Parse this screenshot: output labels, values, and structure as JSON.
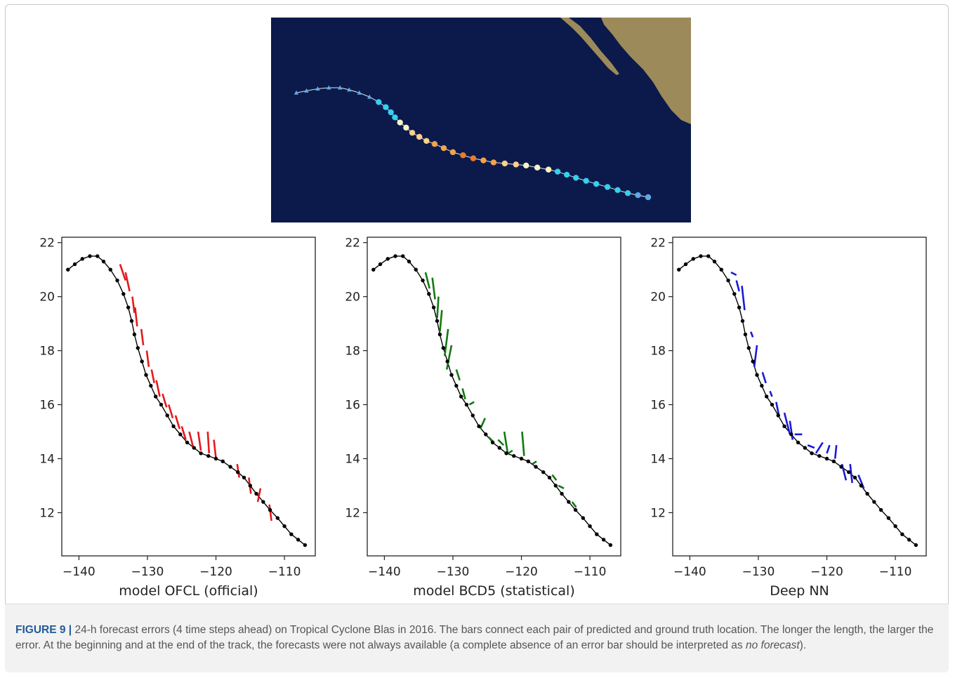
{
  "caption": {
    "label": "FIGURE 9 |",
    "text_part1": " 24-h forecast errors (4 time steps ahead) on Tropical Cyclone Blas in 2016. The bars connect each pair of predicted and ground truth location. The longer the length, the larger the error. At the beginning and at the end of the track, the forecasts were not always available (a complete absence of an error bar should be interpreted as ",
    "text_italic": "no forecast",
    "text_part2": ")."
  },
  "map_image": {
    "colors": {
      "ocean": "#0b1a4a",
      "land": "#9c8a5a",
      "track_line": "#e6e6e6",
      "depression": "#5fa8e8",
      "storm": "#35d0f0",
      "cat1": "#fbf3c4",
      "cat2": "#fbd08a",
      "cat3": "#f5a24a",
      "cat4": "#ee7a2a"
    }
  },
  "chart_data": [
    {
      "type": "scatter",
      "xlabel": "model OFCL (official)",
      "xlim": [
        -142.5,
        -105.5
      ],
      "ylim": [
        10.4,
        22.2
      ],
      "xticks": [
        -140,
        -130,
        -120,
        -110
      ],
      "yticks": [
        12,
        14,
        16,
        18,
        20,
        22
      ],
      "xtick_labels": [
        "−140",
        "−130",
        "−120",
        "−110"
      ],
      "ytick_labels": [
        "12",
        "14",
        "16",
        "18",
        "20",
        "22"
      ],
      "color": "#e31a1c",
      "track": {
        "x": [
          -141.6,
          -140.6,
          -139.5,
          -138.4,
          -137.3,
          -136.4,
          -135.4,
          -134.4,
          -133.5,
          -132.8,
          -132.3,
          -131.9,
          -131.4,
          -130.8,
          -130.2,
          -129.5,
          -128.8,
          -128.0,
          -127.1,
          -126.2,
          -125.2,
          -124.2,
          -123.2,
          -122.2,
          -121.1,
          -120.0,
          -119.0,
          -117.9,
          -116.8,
          -115.9,
          -115.0,
          -114.1,
          -113.1,
          -112.1,
          -111.0,
          -110.0,
          -109.0,
          -108.0,
          -107.0
        ],
        "y": [
          21.0,
          21.2,
          21.4,
          21.5,
          21.5,
          21.3,
          21.0,
          20.6,
          20.1,
          19.6,
          19.1,
          18.6,
          18.1,
          17.6,
          17.1,
          16.7,
          16.3,
          16.0,
          15.6,
          15.2,
          14.9,
          14.6,
          14.4,
          14.2,
          14.1,
          14.0,
          13.9,
          13.7,
          13.5,
          13.3,
          13.0,
          12.7,
          12.4,
          12.1,
          11.8,
          11.5,
          11.2,
          11.0,
          10.8
        ]
      },
      "error_bars": [
        {
          "x1": -134.0,
          "y1": 21.2,
          "x2": -133.2,
          "y2": 20.6
        },
        {
          "x1": -133.2,
          "y1": 20.9,
          "x2": -132.6,
          "y2": 20.2
        },
        {
          "x1": -132.2,
          "y1": 20.0,
          "x2": -131.9,
          "y2": 19.4
        },
        {
          "x1": -131.8,
          "y1": 19.6,
          "x2": -131.5,
          "y2": 18.9
        },
        {
          "x1": -130.9,
          "y1": 18.8,
          "x2": -130.6,
          "y2": 18.2
        },
        {
          "x1": -130.1,
          "y1": 18.0,
          "x2": -129.8,
          "y2": 17.4
        },
        {
          "x1": -129.4,
          "y1": 17.3,
          "x2": -129.0,
          "y2": 16.8
        },
        {
          "x1": -128.7,
          "y1": 16.9,
          "x2": -128.2,
          "y2": 16.3
        },
        {
          "x1": -127.8,
          "y1": 16.4,
          "x2": -127.2,
          "y2": 15.9
        },
        {
          "x1": -126.9,
          "y1": 16.0,
          "x2": -126.3,
          "y2": 15.5
        },
        {
          "x1": -125.9,
          "y1": 15.6,
          "x2": -125.3,
          "y2": 15.1
        },
        {
          "x1": -125.0,
          "y1": 15.2,
          "x2": -124.4,
          "y2": 14.7
        },
        {
          "x1": -123.9,
          "y1": 15.0,
          "x2": -123.3,
          "y2": 14.4
        },
        {
          "x1": -122.6,
          "y1": 15.0,
          "x2": -122.2,
          "y2": 14.3
        },
        {
          "x1": -121.2,
          "y1": 15.0,
          "x2": -121.0,
          "y2": 14.2
        },
        {
          "x1": -120.3,
          "y1": 14.7,
          "x2": -120.0,
          "y2": 14.0
        },
        {
          "x1": -116.9,
          "y1": 13.8,
          "x2": -116.6,
          "y2": 13.3
        },
        {
          "x1": -115.2,
          "y1": 13.3,
          "x2": -114.9,
          "y2": 12.7
        },
        {
          "x1": -113.5,
          "y1": 12.9,
          "x2": -113.9,
          "y2": 12.4
        },
        {
          "x1": -112.2,
          "y1": 12.3,
          "x2": -111.9,
          "y2": 11.7
        }
      ]
    },
    {
      "type": "scatter",
      "xlabel": "model BCD5 (statistical)",
      "xlim": [
        -142.5,
        -105.5
      ],
      "ylim": [
        10.4,
        22.2
      ],
      "xticks": [
        -140,
        -130,
        -120,
        -110
      ],
      "yticks": [
        12,
        14,
        16,
        18,
        20,
        22
      ],
      "xtick_labels": [
        "−140",
        "−130",
        "−120",
        "−110"
      ],
      "ytick_labels": [
        "12",
        "14",
        "16",
        "18",
        "20",
        "22"
      ],
      "color": "#117a11",
      "track": {
        "x": [
          -141.6,
          -140.6,
          -139.5,
          -138.4,
          -137.3,
          -136.4,
          -135.4,
          -134.4,
          -133.5,
          -132.8,
          -132.3,
          -131.9,
          -131.4,
          -130.8,
          -130.2,
          -129.5,
          -128.8,
          -128.0,
          -127.1,
          -126.2,
          -125.2,
          -124.2,
          -123.2,
          -122.2,
          -121.1,
          -120.0,
          -119.0,
          -117.9,
          -116.8,
          -115.9,
          -115.0,
          -114.1,
          -113.1,
          -112.1,
          -111.0,
          -110.0,
          -109.0,
          -108.0,
          -107.0
        ],
        "y": [
          21.0,
          21.2,
          21.4,
          21.5,
          21.5,
          21.3,
          21.0,
          20.6,
          20.1,
          19.6,
          19.1,
          18.6,
          18.1,
          17.6,
          17.1,
          16.7,
          16.3,
          16.0,
          15.6,
          15.2,
          14.9,
          14.6,
          14.4,
          14.2,
          14.1,
          14.0,
          13.9,
          13.7,
          13.5,
          13.3,
          13.0,
          12.7,
          12.4,
          12.1,
          11.8,
          11.5,
          11.2,
          11.0,
          10.8
        ]
      },
      "error_bars": [
        {
          "x1": -134.0,
          "y1": 20.9,
          "x2": -133.4,
          "y2": 20.3
        },
        {
          "x1": -133.0,
          "y1": 20.7,
          "x2": -132.6,
          "y2": 19.9
        },
        {
          "x1": -132.1,
          "y1": 20.0,
          "x2": -132.3,
          "y2": 19.2
        },
        {
          "x1": -131.6,
          "y1": 19.5,
          "x2": -131.9,
          "y2": 18.7
        },
        {
          "x1": -130.7,
          "y1": 18.8,
          "x2": -131.2,
          "y2": 17.8
        },
        {
          "x1": -130.2,
          "y1": 18.2,
          "x2": -130.9,
          "y2": 17.3
        },
        {
          "x1": -129.5,
          "y1": 17.3,
          "x2": -129.0,
          "y2": 16.9
        },
        {
          "x1": -128.6,
          "y1": 16.6,
          "x2": -128.2,
          "y2": 16.2
        },
        {
          "x1": -127.6,
          "y1": 16.0,
          "x2": -126.9,
          "y2": 16.1
        },
        {
          "x1": -126.0,
          "y1": 15.1,
          "x2": -125.3,
          "y2": 15.5
        },
        {
          "x1": -124.8,
          "y1": 14.8,
          "x2": -124.0,
          "y2": 14.6
        },
        {
          "x1": -123.4,
          "y1": 14.7,
          "x2": -122.6,
          "y2": 14.5
        },
        {
          "x1": -122.5,
          "y1": 15.0,
          "x2": -122.0,
          "y2": 14.2
        },
        {
          "x1": -121.9,
          "y1": 14.2,
          "x2": -121.3,
          "y2": 14.3
        },
        {
          "x1": -119.9,
          "y1": 15.0,
          "x2": -119.6,
          "y2": 14.1
        },
        {
          "x1": -118.4,
          "y1": 13.8,
          "x2": -117.8,
          "y2": 13.9
        },
        {
          "x1": -115.5,
          "y1": 13.4,
          "x2": -114.9,
          "y2": 13.2
        },
        {
          "x1": -114.6,
          "y1": 13.0,
          "x2": -113.8,
          "y2": 12.9
        },
        {
          "x1": -112.6,
          "y1": 12.4,
          "x2": -112.0,
          "y2": 12.2
        }
      ]
    },
    {
      "type": "scatter",
      "xlabel": "Deep NN",
      "xlim": [
        -142.5,
        -105.5
      ],
      "ylim": [
        10.4,
        22.2
      ],
      "xticks": [
        -140,
        -130,
        -120,
        -110
      ],
      "yticks": [
        12,
        14,
        16,
        18,
        20,
        22
      ],
      "xtick_labels": [
        "−140",
        "−130",
        "−120",
        "−110"
      ],
      "ytick_labels": [
        "12",
        "14",
        "16",
        "18",
        "20",
        "22"
      ],
      "color": "#1a1ad6",
      "track": {
        "x": [
          -141.6,
          -140.6,
          -139.5,
          -138.4,
          -137.3,
          -136.4,
          -135.4,
          -134.4,
          -133.5,
          -132.8,
          -132.3,
          -131.9,
          -131.4,
          -130.8,
          -130.2,
          -129.5,
          -128.8,
          -128.0,
          -127.1,
          -126.2,
          -125.2,
          -124.2,
          -123.2,
          -122.2,
          -121.1,
          -120.0,
          -119.0,
          -117.9,
          -116.8,
          -115.9,
          -115.0,
          -114.1,
          -113.1,
          -112.1,
          -111.0,
          -110.0,
          -109.0,
          -108.0,
          -107.0
        ],
        "y": [
          21.0,
          21.2,
          21.4,
          21.5,
          21.5,
          21.3,
          21.0,
          20.6,
          20.1,
          19.6,
          19.1,
          18.6,
          18.1,
          17.6,
          17.1,
          16.7,
          16.3,
          16.0,
          15.6,
          15.2,
          14.9,
          14.6,
          14.4,
          14.2,
          14.1,
          14.0,
          13.9,
          13.7,
          13.5,
          13.3,
          13.0,
          12.7,
          12.4,
          12.1,
          11.8,
          11.5,
          11.2,
          11.0,
          10.8
        ]
      },
      "error_bars": [
        {
          "x1": -134.0,
          "y1": 20.9,
          "x2": -133.2,
          "y2": 20.8
        },
        {
          "x1": -133.2,
          "y1": 20.6,
          "x2": -132.8,
          "y2": 20.2
        },
        {
          "x1": -132.4,
          "y1": 20.4,
          "x2": -132.0,
          "y2": 19.5
        },
        {
          "x1": -131.1,
          "y1": 18.7,
          "x2": -130.8,
          "y2": 18.5
        },
        {
          "x1": -130.2,
          "y1": 18.2,
          "x2": -130.6,
          "y2": 17.4
        },
        {
          "x1": -129.4,
          "y1": 17.2,
          "x2": -128.9,
          "y2": 16.8
        },
        {
          "x1": -128.3,
          "y1": 16.5,
          "x2": -128.0,
          "y2": 16.3
        },
        {
          "x1": -127.4,
          "y1": 16.1,
          "x2": -127.0,
          "y2": 15.6
        },
        {
          "x1": -126.2,
          "y1": 15.7,
          "x2": -125.4,
          "y2": 14.9
        },
        {
          "x1": -125.4,
          "y1": 15.4,
          "x2": -125.0,
          "y2": 14.7
        },
        {
          "x1": -124.7,
          "y1": 14.9,
          "x2": -123.6,
          "y2": 14.9
        },
        {
          "x1": -122.8,
          "y1": 14.5,
          "x2": -121.8,
          "y2": 14.4
        },
        {
          "x1": -121.6,
          "y1": 14.2,
          "x2": -120.6,
          "y2": 14.6
        },
        {
          "x1": -120.0,
          "y1": 14.2,
          "x2": -119.6,
          "y2": 14.5
        },
        {
          "x1": -118.6,
          "y1": 14.5,
          "x2": -118.8,
          "y2": 14.0
        },
        {
          "x1": -117.8,
          "y1": 13.8,
          "x2": -117.2,
          "y2": 13.2
        },
        {
          "x1": -116.6,
          "y1": 13.8,
          "x2": -116.3,
          "y2": 13.1
        },
        {
          "x1": -115.4,
          "y1": 13.4,
          "x2": -114.6,
          "y2": 12.9
        }
      ]
    }
  ]
}
